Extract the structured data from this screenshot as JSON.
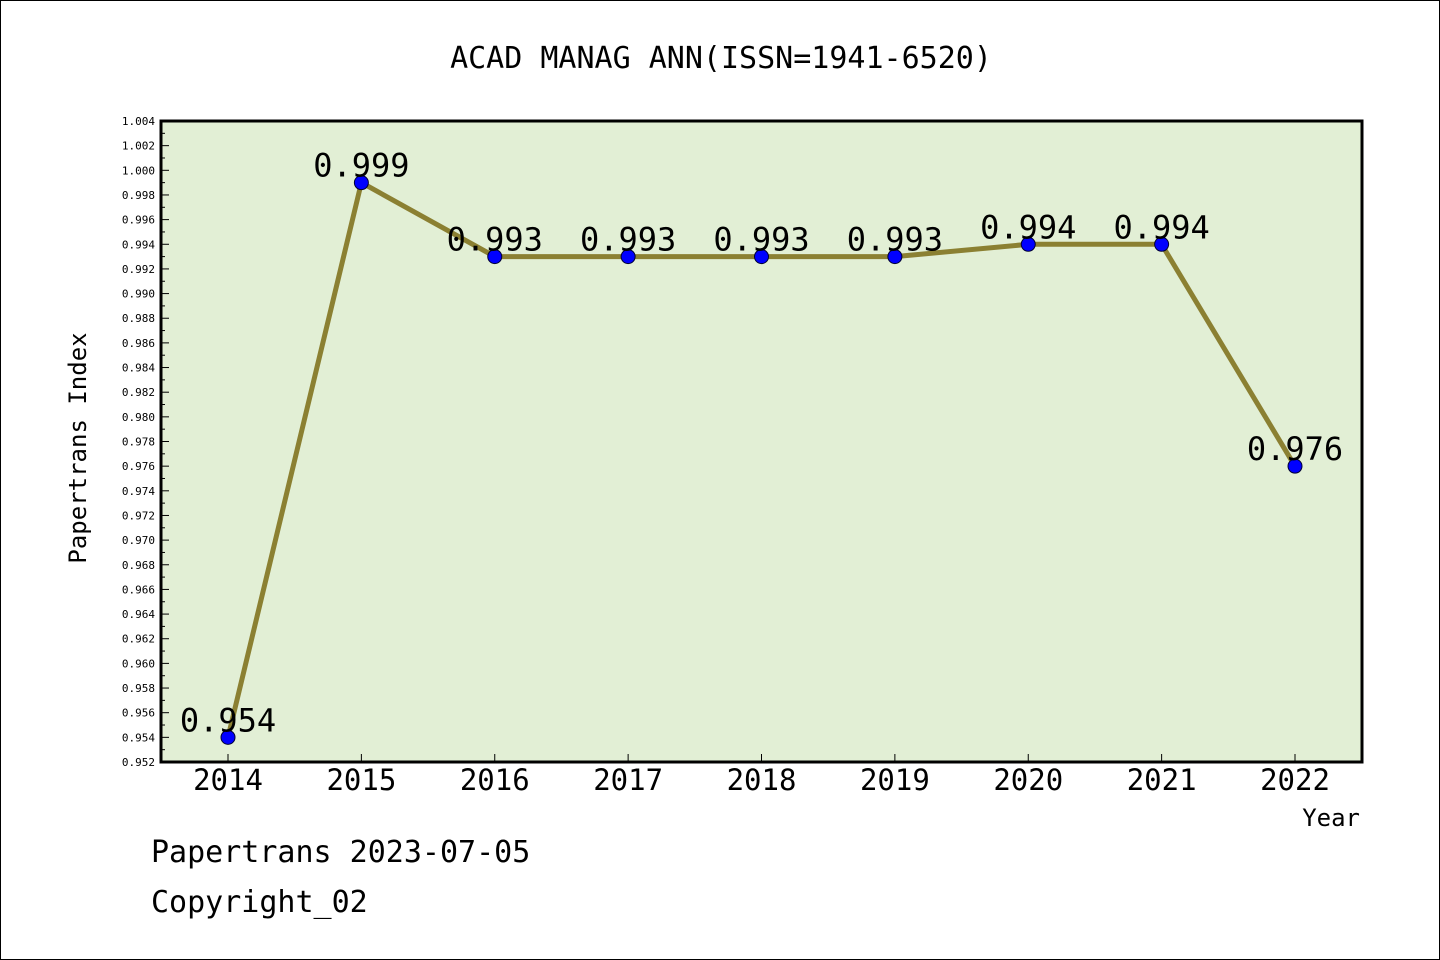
{
  "chart_data": {
    "type": "line",
    "title": "ACAD MANAG ANN(ISSN=1941-6520)",
    "xlabel": "Year",
    "ylabel": "Papertrans Index",
    "categories": [
      "2014",
      "2015",
      "2016",
      "2017",
      "2018",
      "2019",
      "2020",
      "2021",
      "2022"
    ],
    "series": [
      {
        "values": [
          0.954,
          0.999,
          0.993,
          0.993,
          0.993,
          0.993,
          0.994,
          0.994,
          0.976
        ],
        "labels": [
          "0.954",
          "0.999",
          "0.993",
          "0.993",
          "0.993",
          "0.993",
          "0.994",
          "0.994",
          "0.976"
        ]
      }
    ],
    "ylim": [
      0.952,
      1.004
    ],
    "yticks": [
      "0.952",
      "0.954",
      "0.956",
      "0.958",
      "0.960",
      "0.962",
      "0.964",
      "0.966",
      "0.968",
      "0.970",
      "0.972",
      "0.974",
      "0.976",
      "0.978",
      "0.980",
      "0.982",
      "0.984",
      "0.986",
      "0.988",
      "0.990",
      "0.992",
      "0.994",
      "0.996",
      "0.998",
      "1.000",
      "1.002",
      "1.004"
    ],
    "grid": false,
    "legend": "none",
    "colors": {
      "plot_background": "#e2efd5",
      "line": "#8b8032",
      "marker": "#0000ff"
    }
  },
  "footer": {
    "line1": "Papertrans 2023-07-05",
    "line2": "Copyright_02"
  }
}
